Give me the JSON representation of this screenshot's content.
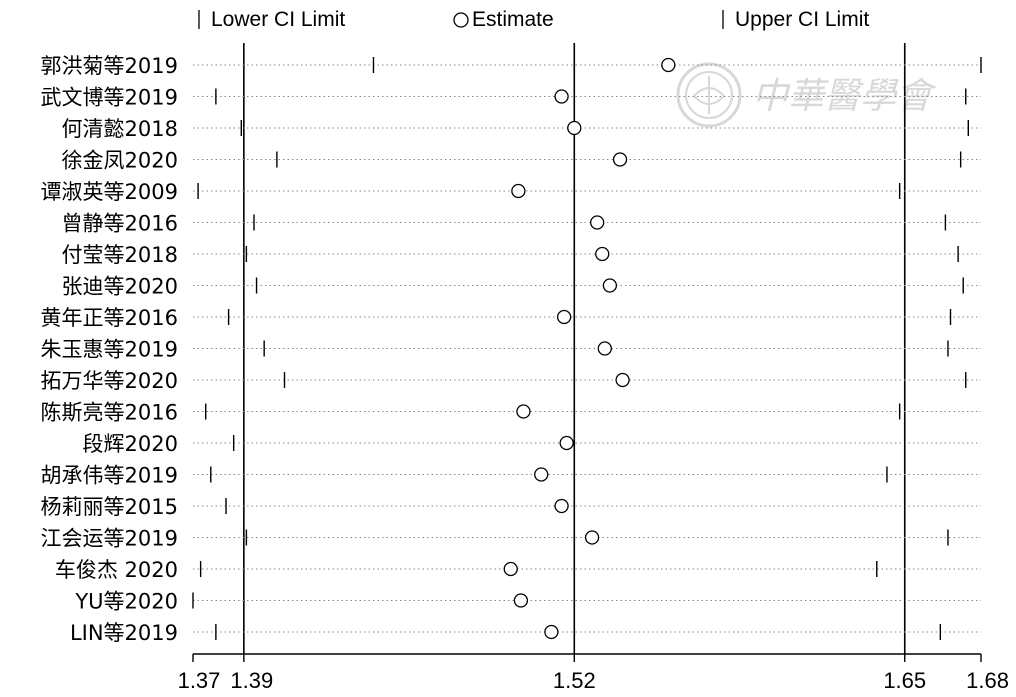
{
  "chart_data": {
    "type": "forest",
    "legend": {
      "lower": "Lower CI Limit",
      "estimate": "Estimate",
      "upper": "Upper CI Limit"
    },
    "xlim": [
      1.37,
      1.68
    ],
    "xticks": [
      1.37,
      1.39,
      1.52,
      1.65,
      1.68
    ],
    "xtick_labels": [
      "1.37",
      "1.39",
      "1.52",
      "1.65",
      "1.68"
    ],
    "reference_lines": [
      1.39,
      1.52,
      1.65
    ],
    "studies": [
      {
        "label": "郭洪菊等2019",
        "lower": 1.441,
        "estimate": 1.557,
        "upper": 1.68
      },
      {
        "label": "武文博等2019",
        "lower": 1.379,
        "estimate": 1.515,
        "upper": 1.674
      },
      {
        "label": "何清懿2018",
        "lower": 1.389,
        "estimate": 1.52,
        "upper": 1.675
      },
      {
        "label": "徐金凤2020",
        "lower": 1.403,
        "estimate": 1.538,
        "upper": 1.672
      },
      {
        "label": "谭淑英等2009",
        "lower": 1.372,
        "estimate": 1.498,
        "upper": 1.648
      },
      {
        "label": "曾静等2016",
        "lower": 1.394,
        "estimate": 1.529,
        "upper": 1.666
      },
      {
        "label": "付莹等2018",
        "lower": 1.391,
        "estimate": 1.531,
        "upper": 1.671
      },
      {
        "label": "张迪等2020",
        "lower": 1.395,
        "estimate": 1.534,
        "upper": 1.673
      },
      {
        "label": "黄年正等2016",
        "lower": 1.384,
        "estimate": 1.516,
        "upper": 1.668
      },
      {
        "label": "朱玉惠等2019",
        "lower": 1.398,
        "estimate": 1.532,
        "upper": 1.667
      },
      {
        "label": "拓万华等2020",
        "lower": 1.406,
        "estimate": 1.539,
        "upper": 1.674
      },
      {
        "label": "陈斯亮等2016",
        "lower": 1.375,
        "estimate": 1.5,
        "upper": 1.648
      },
      {
        "label": "段辉2020",
        "lower": 1.386,
        "estimate": 1.517,
        "upper": 1.65
      },
      {
        "label": "胡承伟等2019",
        "lower": 1.377,
        "estimate": 1.507,
        "upper": 1.643
      },
      {
        "label": "杨莉丽等2015",
        "lower": 1.383,
        "estimate": 1.515,
        "upper": 1.65
      },
      {
        "label": "江会运等2019",
        "lower": 1.391,
        "estimate": 1.527,
        "upper": 1.667
      },
      {
        "label": "车俊杰 2020",
        "lower": 1.373,
        "estimate": 1.495,
        "upper": 1.639
      },
      {
        "label": "YU等2020",
        "lower": 1.37,
        "estimate": 1.499,
        "upper": 1.65
      },
      {
        "label": "LIN等2019",
        "lower": 1.379,
        "estimate": 1.511,
        "upper": 1.664
      }
    ]
  },
  "watermark": {
    "text": "中華醫學會",
    "color": "#d8d8d8"
  }
}
